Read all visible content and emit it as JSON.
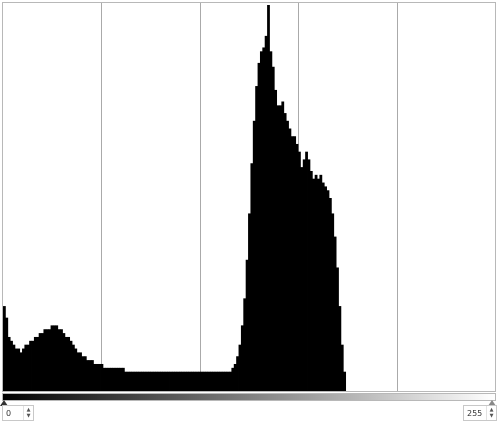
{
  "histogram": {
    "channel": "value",
    "range_min": 0,
    "range_max": 255,
    "grid_divisions": 5,
    "bar_color": "#000000",
    "grid_color": "#aaaaaa",
    "counts": [
      0.22,
      0.19,
      0.14,
      0.13,
      0.12,
      0.11,
      0.11,
      0.1,
      0.11,
      0.12,
      0.12,
      0.13,
      0.13,
      0.14,
      0.14,
      0.15,
      0.15,
      0.16,
      0.16,
      0.16,
      0.17,
      0.17,
      0.17,
      0.16,
      0.16,
      0.15,
      0.14,
      0.14,
      0.13,
      0.12,
      0.11,
      0.1,
      0.1,
      0.09,
      0.09,
      0.08,
      0.08,
      0.08,
      0.07,
      0.07,
      0.07,
      0.07,
      0.06,
      0.06,
      0.06,
      0.06,
      0.06,
      0.06,
      0.06,
      0.06,
      0.06,
      0.05,
      0.05,
      0.05,
      0.05,
      0.05,
      0.05,
      0.05,
      0.05,
      0.05,
      0.05,
      0.05,
      0.05,
      0.05,
      0.05,
      0.05,
      0.05,
      0.05,
      0.05,
      0.05,
      0.05,
      0.05,
      0.05,
      0.05,
      0.05,
      0.05,
      0.05,
      0.05,
      0.05,
      0.05,
      0.05,
      0.05,
      0.05,
      0.05,
      0.05,
      0.05,
      0.05,
      0.05,
      0.05,
      0.05,
      0.05,
      0.05,
      0.05,
      0.05,
      0.05,
      0.05,
      0.06,
      0.07,
      0.09,
      0.12,
      0.17,
      0.24,
      0.34,
      0.46,
      0.59,
      0.7,
      0.79,
      0.85,
      0.88,
      0.89,
      0.92,
      1.0,
      0.88,
      0.84,
      0.78,
      0.74,
      0.74,
      0.75,
      0.72,
      0.7,
      0.68,
      0.66,
      0.66,
      0.64,
      0.62,
      0.58,
      0.6,
      0.62,
      0.6,
      0.57,
      0.55,
      0.56,
      0.55,
      0.56,
      0.54,
      0.53,
      0.52,
      0.5,
      0.46,
      0.4,
      0.32,
      0.22,
      0.12,
      0.05,
      0.0
    ]
  },
  "input_levels": {
    "low_value": "0",
    "high_value": "255"
  },
  "icons": {
    "spin_up": "▲",
    "spin_down": "▼"
  }
}
